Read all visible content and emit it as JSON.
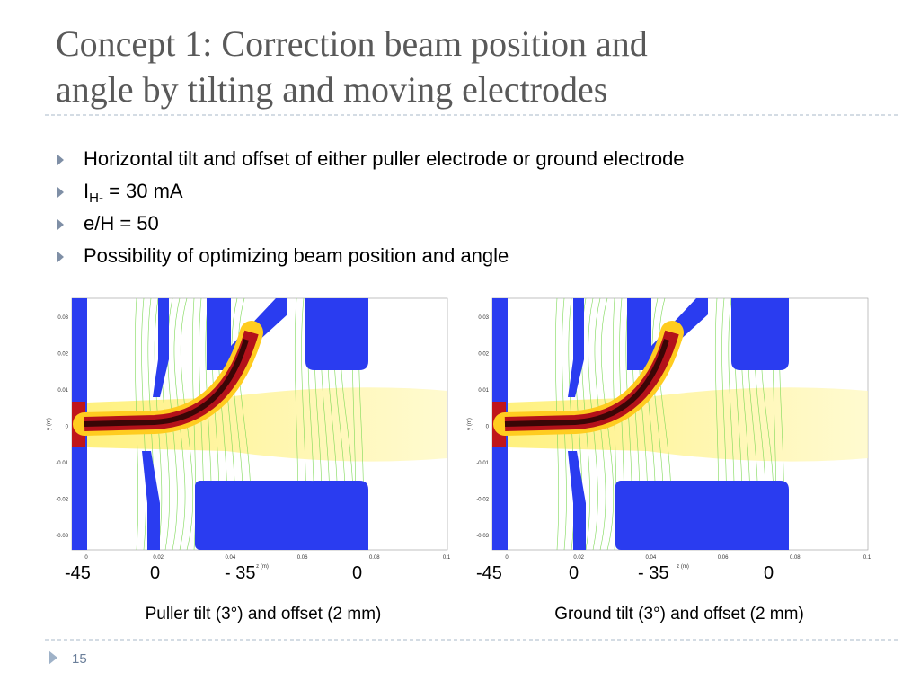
{
  "header": {
    "title_line1": "Concept 1: Correction beam position and",
    "title_line2": "angle by tilting and moving electrodes"
  },
  "bullets": [
    {
      "text": "Horizontal tilt and offset of either puller electrode or ground electrode"
    },
    {
      "text": "I",
      "sub": "H-",
      "rest": " = 30 mA"
    },
    {
      "text": "e/H = 50"
    },
    {
      "text": "Possibility of optimizing beam position and angle"
    }
  ],
  "panels": [
    {
      "yticks": [
        "0.03",
        "0.02",
        "0.01",
        "0",
        "-0.01",
        "-0.02",
        "-0.03"
      ],
      "xticks": [
        "0",
        "0.02",
        "0.04",
        "0.06",
        "0.08",
        "0.1"
      ],
      "ylabel": "y (m)",
      "xlabel": "z (m)",
      "marks": [
        "-45",
        "0",
        "- 35",
        "0"
      ],
      "caption": "Puller tilt (3°) and offset (2 mm)"
    },
    {
      "yticks": [
        "0.03",
        "0.02",
        "0.01",
        "0",
        "-0.01",
        "-0.02",
        "-0.03"
      ],
      "xticks": [
        "0",
        "0.02",
        "0.04",
        "0.06",
        "0.08",
        "0.1"
      ],
      "ylabel": "y (m)",
      "xlabel": "z (m)",
      "marks": [
        "-45",
        "0",
        "- 35",
        "0"
      ],
      "caption": "Ground tilt (3°) and offset (2 mm)"
    }
  ],
  "footer": {
    "page": "15"
  }
}
